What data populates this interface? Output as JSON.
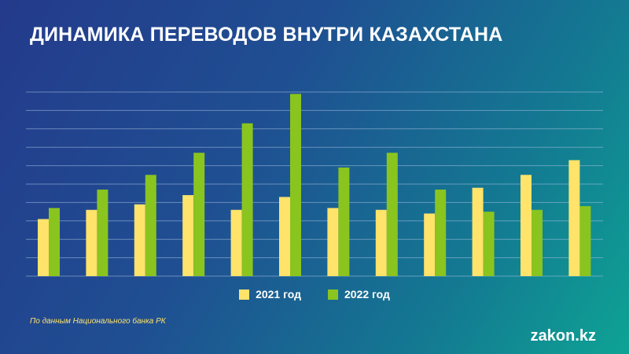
{
  "title": "ДИНАМИКА ПЕРЕВОДОВ ВНУТРИ КАЗАХСТАНА",
  "source": "По данным Национального банка РК",
  "logo": "zakon.kz",
  "colors": {
    "series_2021": "#ffe36a",
    "series_2022": "#8ac41f",
    "grid": "#a8c1e0"
  },
  "legend": {
    "position": "bottom-center",
    "items": [
      {
        "label": "2021 год"
      },
      {
        "label": "2022 год"
      }
    ]
  },
  "chart_data": {
    "type": "bar",
    "title": "ДИНАМИКА ПЕРЕВОДОВ ВНУТРИ КАЗАХСТАНА",
    "xlabel": "",
    "ylabel": "",
    "categories": [
      "",
      "",
      "",
      "",
      "",
      "",
      "",
      "",
      "",
      "",
      "",
      ""
    ],
    "ylim": [
      0,
      10
    ],
    "grid": true,
    "series": [
      {
        "name": "2021 год",
        "values": [
          3.1,
          3.6,
          3.9,
          4.4,
          3.6,
          4.3,
          3.7,
          3.6,
          3.4,
          4.8,
          5.5,
          6.3
        ]
      },
      {
        "name": "2022 год",
        "values": [
          3.7,
          4.7,
          5.5,
          6.7,
          8.3,
          9.9,
          5.9,
          6.7,
          4.7,
          3.5,
          3.6,
          3.8
        ]
      }
    ]
  }
}
